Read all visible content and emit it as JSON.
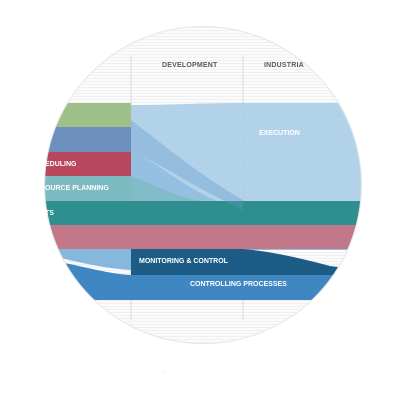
{
  "columns": {
    "development": "DEVELOPMENT",
    "industrial": "INDUSTRIA"
  },
  "bands": {
    "execution": "EXECUTION",
    "scheduling": "EDULING",
    "resource_planning": "OURCE PLANNING",
    "ts": "TS",
    "monitoring": "MONITORING & CONTROL",
    "controlling": "CONTROLLING PROCESSES"
  },
  "colors": {
    "green": "#9fc08a",
    "steel_blue": "#6c8fbd",
    "crimson": "#b8475d",
    "light_teal": "#7dbac2",
    "teal": "#2f8f8e",
    "rose": "#c3788a",
    "sky": "#a6cbe6",
    "navy": "#1d5c86",
    "mid_blue": "#3f87c2",
    "grid_line": "#d6d9dc",
    "stripe": "#eef0f2"
  }
}
